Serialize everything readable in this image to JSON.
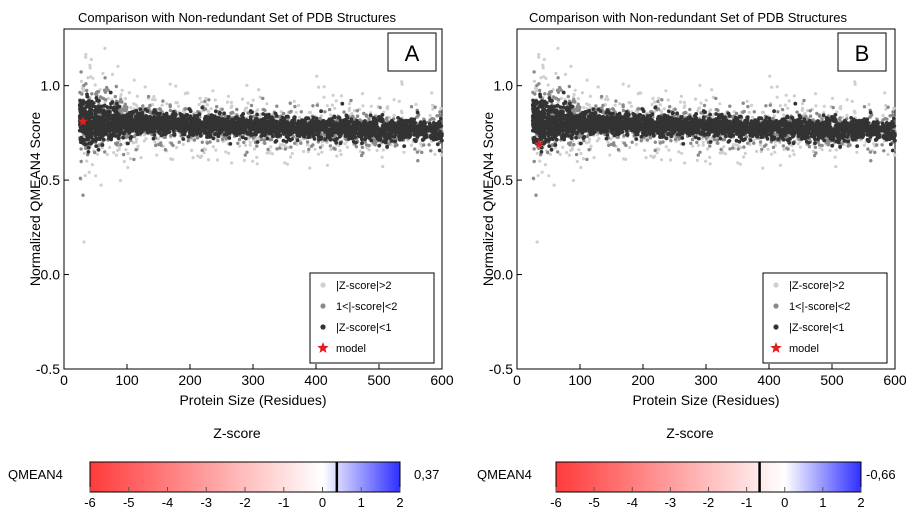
{
  "chart_data": [
    {
      "type": "scatter",
      "panel_label": "A",
      "title": "Comparison with Non-redundant Set of PDB Structures",
      "xlabel": "Protein Size (Residues)",
      "ylabel": "Normalized QMEAN4 Score",
      "xlim": [
        0,
        600
      ],
      "ylim": [
        -0.5,
        1.3
      ],
      "x_ticks": [
        "0",
        "100",
        "200",
        "300",
        "400",
        "500",
        "600"
      ],
      "y_ticks": [
        "-0.5",
        "0.0",
        "0.5",
        "1.0"
      ],
      "x_tick_values": [
        0,
        100,
        200,
        300,
        400,
        500,
        600
      ],
      "y_tick_values": [
        -0.5,
        0.0,
        0.5,
        1.0
      ],
      "legend_position": "bottom-right",
      "legend": [
        {
          "label": "|Z-score|>2",
          "color": "#cfcfcf",
          "symbol": "dot"
        },
        {
          "label": "1<|-score|<2",
          "color": "#8a8a8a",
          "symbol": "dot"
        },
        {
          "label": "|Z-score|<1",
          "color": "#333333",
          "symbol": "dot"
        },
        {
          "label": "model",
          "color": "#e02020",
          "symbol": "star"
        }
      ],
      "model_point": {
        "x": 30,
        "y": 0.81
      },
      "colorbar": {
        "title": "Z-score",
        "label": "QMEAN4",
        "min": -6,
        "max": 2,
        "ticks": [
          "-6",
          "-5",
          "-4",
          "-3",
          "-2",
          "-1",
          "0",
          "1",
          "2"
        ],
        "marker": 0.37,
        "value_text": "0,37"
      }
    },
    {
      "type": "scatter",
      "panel_label": "B",
      "title": "Comparison with Non-redundant Set of PDB Structures",
      "xlabel": "Protein Size (Residues)",
      "ylabel": "Normalized QMEAN4 Score",
      "xlim": [
        0,
        600
      ],
      "ylim": [
        -0.5,
        1.3
      ],
      "x_ticks": [
        "0",
        "100",
        "200",
        "300",
        "400",
        "500",
        "600"
      ],
      "y_ticks": [
        "-0.5",
        "0.0",
        "0.5",
        "1.0"
      ],
      "x_tick_values": [
        0,
        100,
        200,
        300,
        400,
        500,
        600
      ],
      "y_tick_values": [
        -0.5,
        0.0,
        0.5,
        1.0
      ],
      "legend_position": "bottom-right",
      "legend": [
        {
          "label": "|Z-score|>2",
          "color": "#cfcfcf",
          "symbol": "dot"
        },
        {
          "label": "1<|-score|<2",
          "color": "#8a8a8a",
          "symbol": "dot"
        },
        {
          "label": "|Z-score|<1",
          "color": "#333333",
          "symbol": "dot"
        },
        {
          "label": "model",
          "color": "#e02020",
          "symbol": "star"
        }
      ],
      "model_point": {
        "x": 35,
        "y": 0.69
      },
      "colorbar": {
        "title": "Z-score",
        "label": "QMEAN4",
        "min": -6,
        "max": 2,
        "ticks": [
          "-6",
          "-5",
          "-4",
          "-3",
          "-2",
          "-1",
          "0",
          "1",
          "2"
        ],
        "marker": -0.66,
        "value_text": "-0,66"
      }
    }
  ],
  "colors": {
    "far": "#cfcfcf",
    "mid": "#8a8a8a",
    "near": "#333333",
    "model": "#e02020",
    "colorbar_low": "#ff3b3b",
    "colorbar_mid": "#ffffff",
    "colorbar_high": "#2f2fff"
  }
}
